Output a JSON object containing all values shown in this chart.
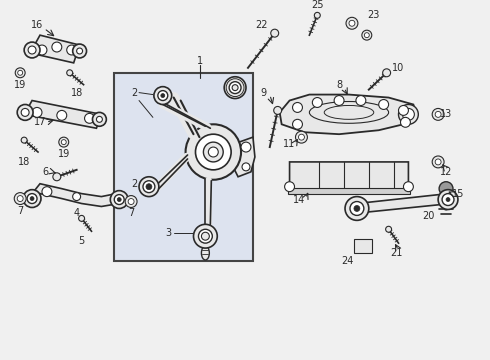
{
  "bg_color": "#f0f0f0",
  "line_color": "#2a2a2a",
  "box_fill": "#dde3ef",
  "box_edge": "#444444",
  "part_fill": "#e8e8e8",
  "part_edge": "#2a2a2a",
  "white": "#ffffff",
  "gray": "#aaaaaa",
  "fig_width": 4.9,
  "fig_height": 3.6,
  "dpi": 100,
  "fs": 7.0
}
